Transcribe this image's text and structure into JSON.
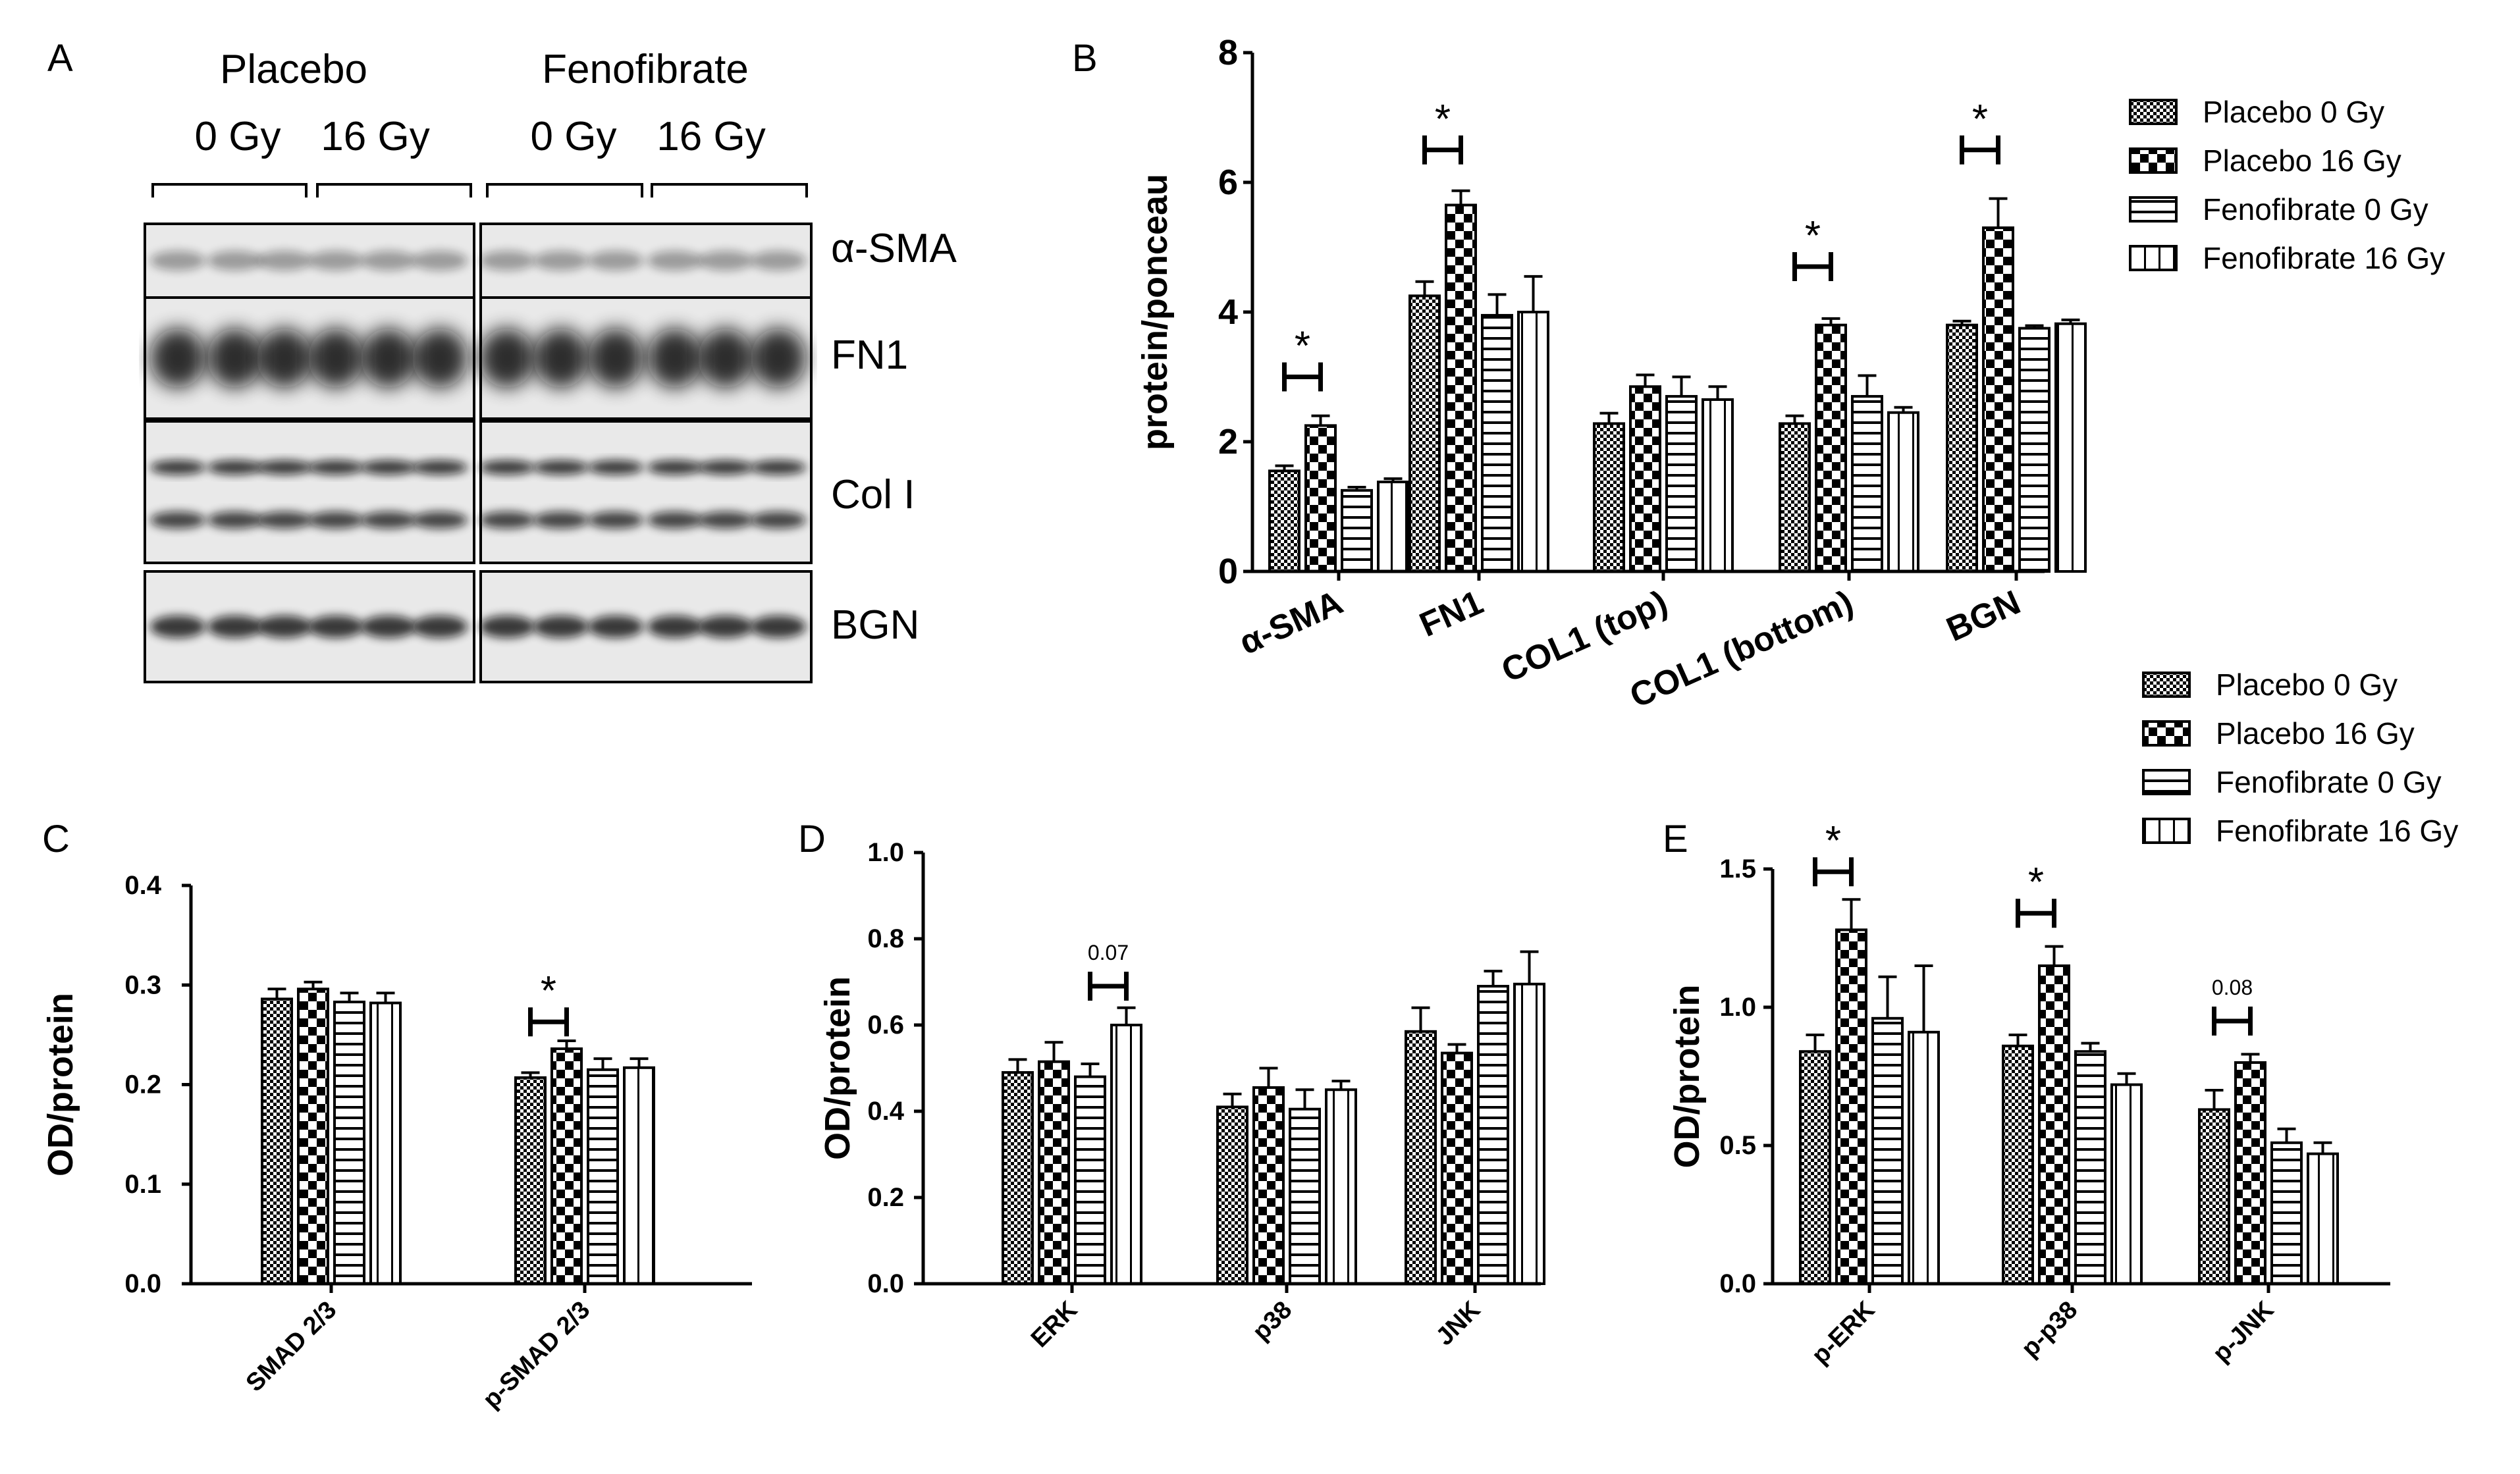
{
  "panels": {
    "A": {
      "letter": "A",
      "groups": [
        "Placebo",
        "Fenofibrate"
      ],
      "doses": [
        "0 Gy",
        "16 Gy",
        "0 Gy",
        "16 Gy"
      ],
      "bands": [
        "α-SMA",
        "FN1",
        "Col I",
        "BGN"
      ]
    }
  },
  "legend": {
    "series": [
      "Placebo 0 Gy",
      "Placebo 16 Gy",
      "Fenofibrate 0 Gy",
      "Fenofibrate 16 Gy"
    ]
  },
  "chart_data": [
    {
      "id": "B",
      "letter": "B",
      "type": "bar",
      "ylabel": "protein/ponceau",
      "ylim": [
        0,
        8
      ],
      "yticks": [
        "0",
        "2",
        "4",
        "6",
        "8"
      ],
      "categories": [
        "α-SMA",
        "FN1",
        "COL1 (top)",
        "COL1 (bottom)",
        "BGN"
      ],
      "series": [
        {
          "name": "Placebo 0 Gy",
          "values": [
            1.55,
            4.25,
            2.28,
            2.28,
            3.8
          ],
          "errors": [
            0.08,
            0.22,
            0.16,
            0.12,
            0.06
          ]
        },
        {
          "name": "Placebo 16 Gy",
          "values": [
            2.25,
            5.65,
            2.85,
            3.8,
            5.3
          ],
          "errors": [
            0.15,
            0.22,
            0.18,
            0.1,
            0.45
          ]
        },
        {
          "name": "Fenofibrate 0 Gy",
          "values": [
            1.25,
            3.95,
            2.7,
            2.7,
            3.75
          ],
          "errors": [
            0.05,
            0.32,
            0.3,
            0.32,
            0.04
          ]
        },
        {
          "name": "Fenofibrate 16 Gy",
          "values": [
            1.38,
            4.0,
            2.65,
            2.45,
            3.82
          ],
          "errors": [
            0.05,
            0.55,
            0.2,
            0.08,
            0.06
          ]
        }
      ],
      "significance": [
        {
          "category": 0,
          "label": "*",
          "y": 3.0
        },
        {
          "category": 1,
          "label": "*",
          "y": 6.5
        },
        {
          "category": 3,
          "label": "*",
          "y": 4.7
        },
        {
          "category": 4,
          "label": "*",
          "y": 6.5
        }
      ]
    },
    {
      "id": "C",
      "letter": "C",
      "type": "bar",
      "ylabel": "OD/protein",
      "ylim": [
        0,
        0.4
      ],
      "yticks": [
        "0.0",
        "0.1",
        "0.2",
        "0.3",
        "0.4"
      ],
      "categories": [
        "SMAD 2/3",
        "p-SMAD 2/3"
      ],
      "series": [
        {
          "name": "Placebo 0 Gy",
          "values": [
            0.286,
            0.207
          ],
          "errors": [
            0.01,
            0.005
          ]
        },
        {
          "name": "Placebo 16 Gy",
          "values": [
            0.296,
            0.236
          ],
          "errors": [
            0.007,
            0.008
          ]
        },
        {
          "name": "Fenofibrate 0 Gy",
          "values": [
            0.283,
            0.215
          ],
          "errors": [
            0.009,
            0.011
          ]
        },
        {
          "name": "Fenofibrate 16 Gy",
          "values": [
            0.282,
            0.217
          ],
          "errors": [
            0.01,
            0.009
          ]
        }
      ],
      "significance": [
        {
          "category": 1,
          "label": "*",
          "y": 0.263
        }
      ]
    },
    {
      "id": "D",
      "letter": "D",
      "type": "bar",
      "ylabel": "OD/protein",
      "ylim": [
        0,
        1.0
      ],
      "yticks": [
        "0.0",
        "0.2",
        "0.4",
        "0.6",
        "0.8",
        "1.0"
      ],
      "categories": [
        "ERK",
        "p38",
        "JNK"
      ],
      "series": [
        {
          "name": "Placebo 0 Gy",
          "values": [
            0.49,
            0.41,
            0.585
          ],
          "errors": [
            0.03,
            0.03,
            0.055
          ]
        },
        {
          "name": "Placebo 16 Gy",
          "values": [
            0.515,
            0.455,
            0.535
          ],
          "errors": [
            0.045,
            0.045,
            0.02
          ]
        },
        {
          "name": "Fenofibrate 0 Gy",
          "values": [
            0.48,
            0.405,
            0.69
          ],
          "errors": [
            0.03,
            0.045,
            0.035
          ]
        },
        {
          "name": "Fenofibrate 16 Gy",
          "values": [
            0.6,
            0.45,
            0.695
          ],
          "errors": [
            0.04,
            0.02,
            0.075
          ]
        }
      ],
      "significance": [
        {
          "category": 0,
          "label": "0.07",
          "y": 0.69,
          "small": true
        }
      ]
    },
    {
      "id": "E",
      "letter": "E",
      "type": "bar",
      "ylabel": "OD/protein",
      "ylim": [
        0,
        1.5
      ],
      "yticks": [
        "0.0",
        "0.5",
        "1.0",
        "1.5"
      ],
      "categories": [
        "p-ERK",
        "p-p38",
        "p-JNK"
      ],
      "series": [
        {
          "name": "Placebo 0 Gy",
          "values": [
            0.84,
            0.86,
            0.63
          ],
          "errors": [
            0.06,
            0.04,
            0.07
          ]
        },
        {
          "name": "Placebo 16 Gy",
          "values": [
            1.28,
            1.15,
            0.8
          ],
          "errors": [
            0.11,
            0.07,
            0.03
          ]
        },
        {
          "name": "Fenofibrate 0 Gy",
          "values": [
            0.96,
            0.84,
            0.51
          ],
          "errors": [
            0.15,
            0.03,
            0.05
          ]
        },
        {
          "name": "Fenofibrate 16 Gy",
          "values": [
            0.91,
            0.72,
            0.47
          ],
          "errors": [
            0.24,
            0.04,
            0.04
          ]
        }
      ],
      "significance": [
        {
          "category": 0,
          "label": "*",
          "y": 1.49
        },
        {
          "category": 1,
          "label": "*",
          "y": 1.34
        },
        {
          "category": 2,
          "label": "0.08",
          "y": 0.95,
          "small": true
        }
      ]
    }
  ]
}
